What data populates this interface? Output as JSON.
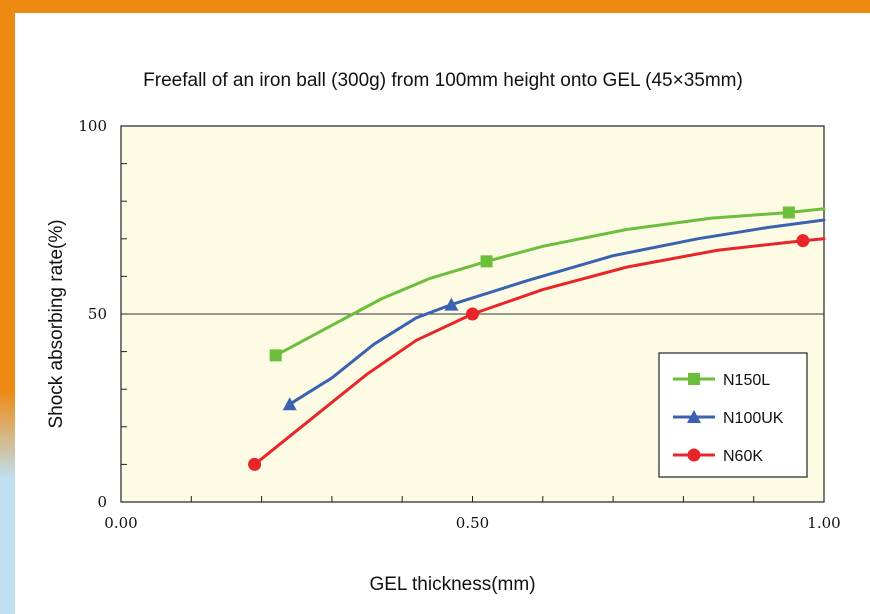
{
  "chart_data": {
    "type": "line",
    "title": "Freefall of an iron ball (300g) from 100mm height onto GEL (45×35mm)",
    "xlabel": "GEL thickness(mm)",
    "ylabel": "Shock absorbing rate(%)",
    "xlim": [
      0,
      1.0
    ],
    "ylim": [
      0,
      100
    ],
    "x_ticks": [
      "0.00",
      "0.50",
      "1.00"
    ],
    "y_ticks": [
      "0",
      "50",
      "100"
    ],
    "reference_line_y": 50,
    "legend_position": "bottom-right",
    "plot_background": "#fdfbe3",
    "series": [
      {
        "name": "N150L",
        "color": "#6bbf3a",
        "marker": "square",
        "line": [
          [
            0.22,
            39
          ],
          [
            0.3,
            47
          ],
          [
            0.37,
            54
          ],
          [
            0.44,
            59.5
          ],
          [
            0.52,
            64
          ],
          [
            0.6,
            68
          ],
          [
            0.72,
            72.5
          ],
          [
            0.84,
            75.5
          ],
          [
            0.95,
            77
          ],
          [
            1.0,
            78
          ]
        ],
        "markers": [
          [
            0.22,
            39
          ],
          [
            0.52,
            64
          ],
          [
            0.95,
            77
          ]
        ]
      },
      {
        "name": "N100UK",
        "color": "#3a62b0",
        "marker": "triangle",
        "line": [
          [
            0.24,
            26
          ],
          [
            0.3,
            33
          ],
          [
            0.36,
            42
          ],
          [
            0.42,
            49
          ],
          [
            0.47,
            52.5
          ],
          [
            0.58,
            59
          ],
          [
            0.7,
            65.5
          ],
          [
            0.82,
            70
          ],
          [
            0.92,
            73
          ],
          [
            1.0,
            75
          ]
        ],
        "markers": [
          [
            0.24,
            26
          ],
          [
            0.47,
            52.5
          ]
        ]
      },
      {
        "name": "N60K",
        "color": "#e8262a",
        "marker": "circle",
        "line": [
          [
            0.19,
            10
          ],
          [
            0.27,
            22
          ],
          [
            0.35,
            34
          ],
          [
            0.42,
            43
          ],
          [
            0.5,
            50
          ],
          [
            0.6,
            56.5
          ],
          [
            0.72,
            62.5
          ],
          [
            0.85,
            67
          ],
          [
            0.97,
            69.5
          ],
          [
            1.0,
            70
          ]
        ],
        "markers": [
          [
            0.19,
            10
          ],
          [
            0.5,
            50
          ],
          [
            0.97,
            69.5
          ]
        ]
      }
    ]
  }
}
